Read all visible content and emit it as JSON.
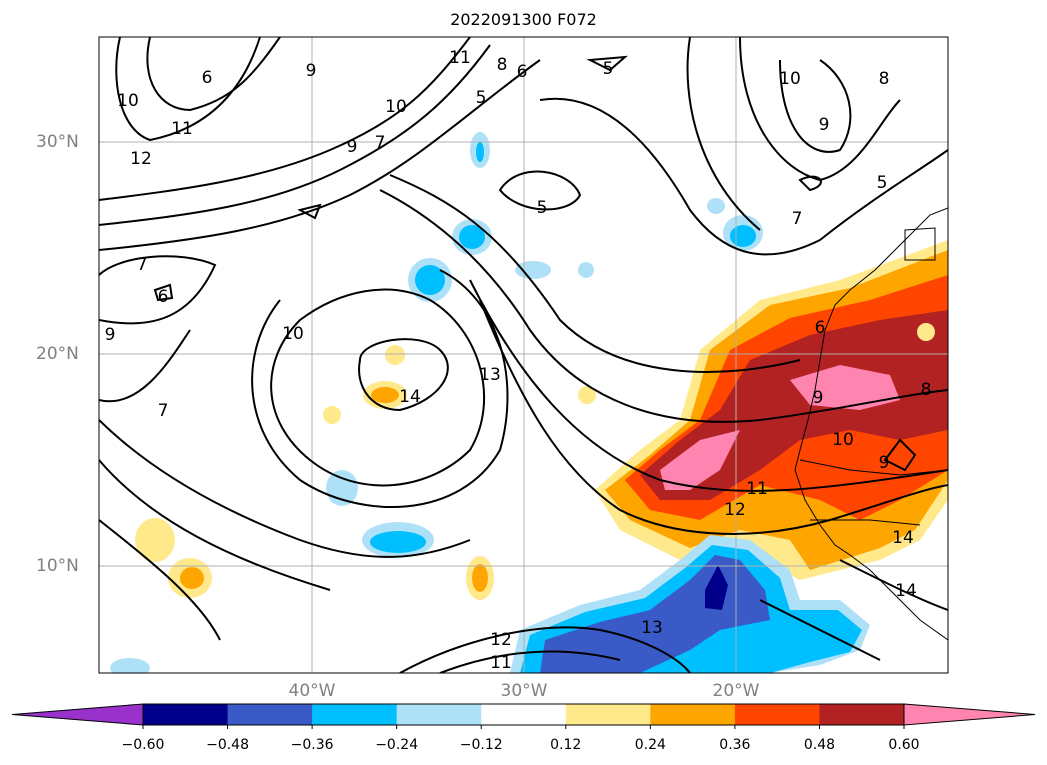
{
  "title": "2022091300 F072",
  "lat_labels": [
    "30°N",
    "20°N",
    "10°N"
  ],
  "lon_labels": [
    "40°W",
    "30°W",
    "20°W"
  ],
  "colorbar": {
    "ticks": [
      "−0.60",
      "−0.48",
      "−0.36",
      "−0.24",
      "−0.12",
      "0.12",
      "0.24",
      "0.36",
      "0.48",
      "0.60"
    ],
    "colors": [
      "#9932cc",
      "#00008b",
      "#3a5bc7",
      "#00bfff",
      "#aee1f7",
      "#ffffff",
      "#ffe98a",
      "#ffa500",
      "#ff4500",
      "#b22222",
      "#ff85b0"
    ]
  },
  "contour_labels": [
    "5",
    "6",
    "7",
    "8",
    "9",
    "10",
    "11",
    "12",
    "13",
    "14"
  ],
  "map_colors": {
    "contour": "#000000",
    "grid": "#b0b0b0",
    "axis_label": "#808080"
  }
}
